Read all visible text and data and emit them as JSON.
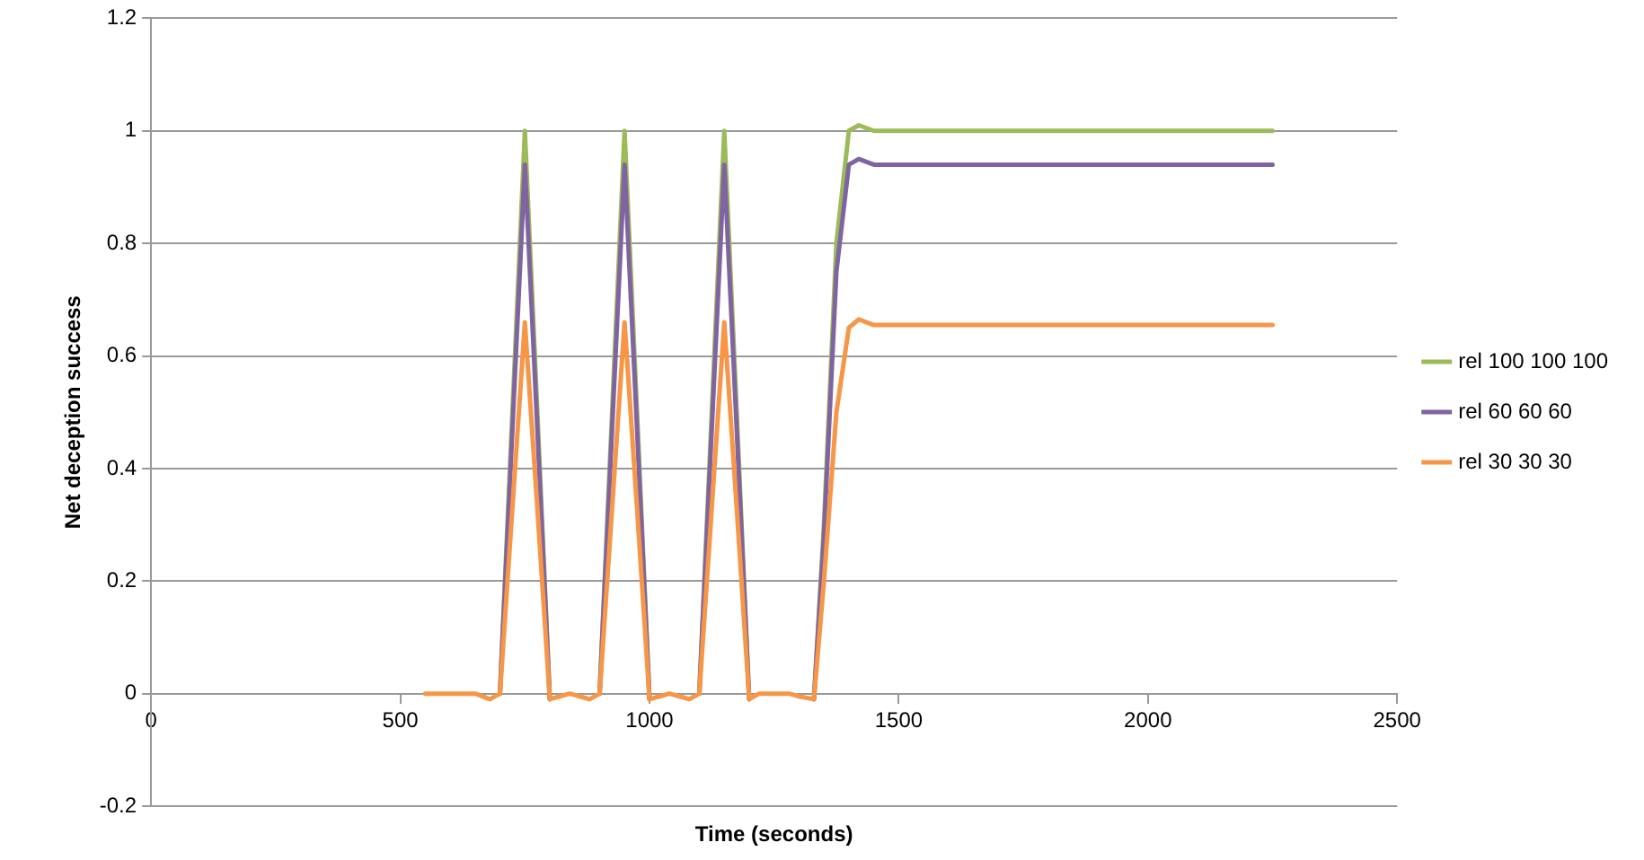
{
  "chart_data": {
    "type": "line",
    "xlabel": "Time (seconds)",
    "ylabel": "Net deception success",
    "x": [
      550,
      600,
      650,
      680,
      700,
      725,
      750,
      775,
      800,
      820,
      840,
      860,
      880,
      900,
      925,
      950,
      975,
      1000,
      1020,
      1040,
      1060,
      1080,
      1100,
      1125,
      1150,
      1175,
      1200,
      1220,
      1250,
      1280,
      1300,
      1330,
      1350,
      1375,
      1400,
      1420,
      1450,
      1500,
      2250
    ],
    "series": [
      {
        "name": "rel 100 100 100",
        "color": "#9bbb59",
        "values": [
          null,
          null,
          null,
          null,
          0,
          0.5,
          1,
          0.5,
          -0.01,
          null,
          null,
          null,
          null,
          0,
          0.5,
          1,
          0.5,
          -0.01,
          null,
          null,
          null,
          null,
          0,
          0.5,
          1,
          0.5,
          -0.01,
          null,
          null,
          null,
          null,
          -0.01,
          0.3,
          0.8,
          1,
          1.01,
          1,
          1,
          1
        ]
      },
      {
        "name": "rel 60 60 60",
        "color": "#8064a2",
        "values": [
          null,
          null,
          null,
          null,
          0,
          0.47,
          0.94,
          0.47,
          -0.01,
          null,
          null,
          null,
          null,
          0,
          0.47,
          0.94,
          0.47,
          -0.01,
          null,
          null,
          null,
          null,
          0,
          0.47,
          0.94,
          0.47,
          -0.01,
          null,
          null,
          null,
          null,
          -0.01,
          0.28,
          0.75,
          0.94,
          0.95,
          0.94,
          0.94,
          0.94
        ]
      },
      {
        "name": "rel 30 30 30",
        "color": "#f79646",
        "values": [
          0,
          0,
          0,
          -0.01,
          0,
          0.33,
          0.66,
          0.33,
          -0.01,
          -0.005,
          0,
          -0.005,
          -0.01,
          0,
          0.33,
          0.66,
          0.33,
          -0.01,
          -0.005,
          0,
          -0.005,
          -0.01,
          0,
          0.33,
          0.66,
          0.33,
          -0.01,
          0,
          0,
          0,
          -0.005,
          -0.01,
          0.2,
          0.5,
          0.65,
          0.665,
          0.655,
          0.655,
          0.655
        ]
      }
    ],
    "xlim": [
      0,
      2500
    ],
    "xticks": [
      0,
      500,
      1000,
      1500,
      2000,
      2500
    ],
    "ylim": [
      -0.2,
      1.2
    ],
    "yticks": [
      -0.2,
      0,
      0.2,
      0.4,
      0.6,
      0.8,
      1,
      1.2
    ],
    "grid": "y",
    "legend": "right",
    "marker": "none",
    "line_style": "solid"
  }
}
